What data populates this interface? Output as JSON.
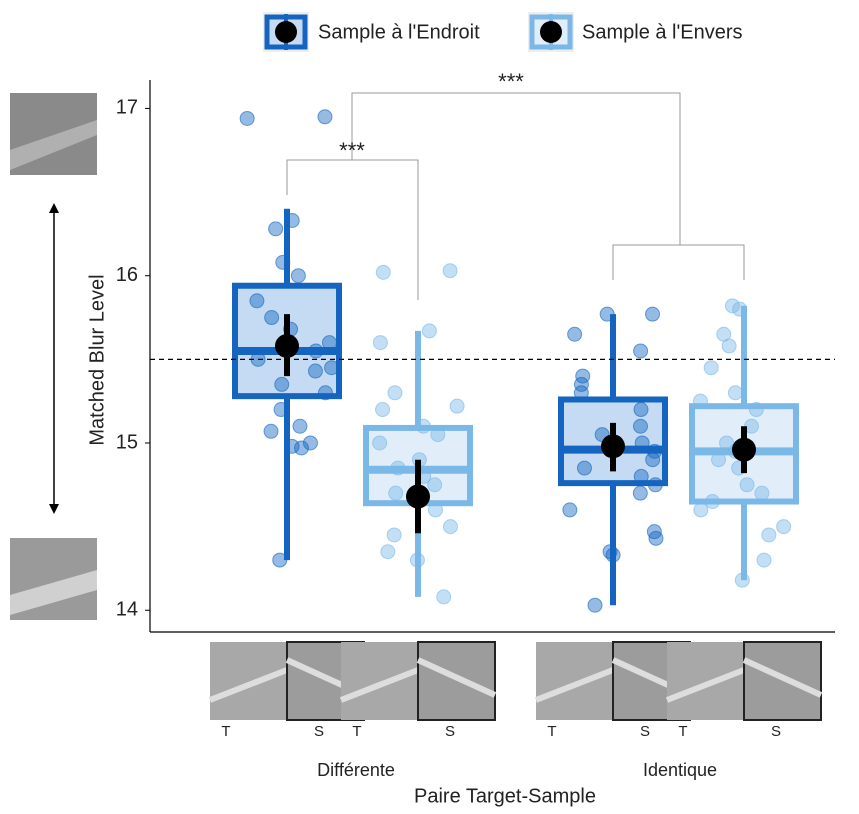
{
  "chart_data": {
    "type": "boxplot",
    "ylabel": "Matched Blur Level",
    "xlabel": "Paire Target-Sample",
    "groups": [
      "Différente",
      "Identique"
    ],
    "sample_labels": [
      "T",
      "S"
    ],
    "ylim": [
      13.87,
      17.17
    ],
    "yticks": [
      14,
      15,
      16,
      17
    ],
    "reference_line": 15.5,
    "annotations": [
      "***",
      "***"
    ],
    "series": [
      {
        "name": "Sample à l'Endroit",
        "color": "#1565c0",
        "box_fill": "#c5dbf3",
        "boxes": [
          {
            "whisker_low": 14.3,
            "q1": 15.28,
            "median": 15.55,
            "q3": 15.94,
            "whisker_high": 16.4,
            "mean": 15.58,
            "ci_low": 15.4,
            "ci_high": 15.77,
            "points": [
              16.95,
              16.94,
              16.33,
              16.28,
              16.08,
              16.0,
              15.85,
              15.75,
              15.68,
              15.6,
              15.55,
              15.5,
              15.45,
              15.43,
              15.35,
              15.3,
              15.2,
              15.1,
              15.07,
              15.0,
              14.98,
              14.97,
              14.3
            ]
          },
          {
            "whisker_low": 14.03,
            "q1": 14.76,
            "median": 14.96,
            "q3": 15.26,
            "whisker_high": 15.77,
            "mean": 14.98,
            "ci_low": 14.83,
            "ci_high": 15.12,
            "points": [
              15.77,
              15.77,
              15.65,
              15.55,
              15.4,
              15.35,
              15.3,
              15.2,
              15.1,
              15.05,
              15.0,
              14.95,
              14.9,
              14.85,
              14.8,
              14.75,
              14.7,
              14.6,
              14.47,
              14.43,
              14.35,
              14.33,
              14.03
            ]
          }
        ]
      },
      {
        "name": "Sample à l'Envers",
        "color": "#7ab8e8",
        "box_fill": "#e1eefa",
        "boxes": [
          {
            "whisker_low": 14.08,
            "q1": 14.64,
            "median": 14.84,
            "q3": 15.09,
            "whisker_high": 15.67,
            "mean": 14.68,
            "ci_low": 14.46,
            "ci_high": 14.9,
            "points": [
              16.03,
              16.02,
              15.67,
              15.6,
              15.3,
              15.22,
              15.2,
              15.1,
              15.05,
              15.0,
              14.9,
              14.85,
              14.8,
              14.75,
              14.7,
              14.65,
              14.6,
              14.5,
              14.45,
              14.35,
              14.3,
              14.08
            ]
          },
          {
            "whisker_low": 14.18,
            "q1": 14.65,
            "median": 14.95,
            "q3": 15.22,
            "whisker_high": 15.82,
            "mean": 14.96,
            "ci_low": 14.82,
            "ci_high": 15.1,
            "points": [
              15.82,
              15.8,
              15.65,
              15.58,
              15.45,
              15.3,
              15.25,
              15.2,
              15.1,
              15.0,
              14.95,
              14.9,
              14.85,
              14.75,
              14.7,
              14.65,
              14.6,
              14.5,
              14.45,
              14.3,
              14.18
            ]
          }
        ]
      }
    ]
  }
}
